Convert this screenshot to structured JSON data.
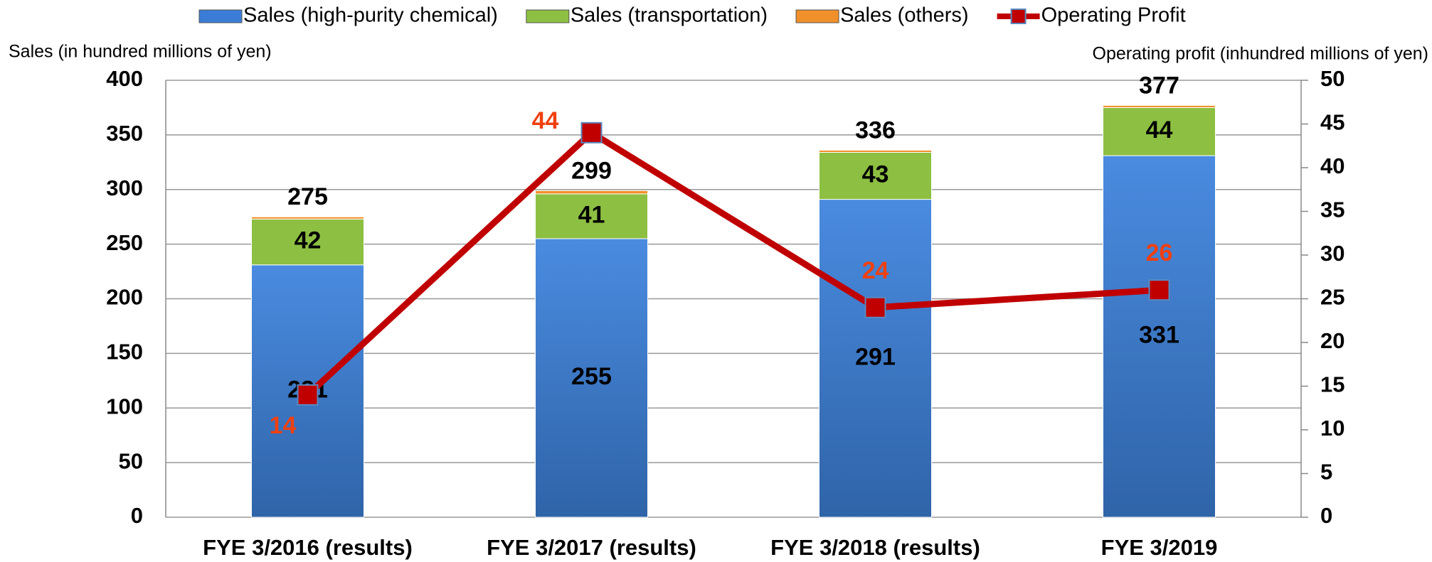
{
  "chart_data": {
    "type": "bar",
    "y_axis_label": "Sales (in hundred millions of yen)",
    "y2_axis_label": "Operating profit (inhundred millions of yen)",
    "categories": [
      "FYE 3/2016 (results)",
      "FYE 3/2017 (results)",
      "FYE 3/2018 (results)",
      "FYE 3/2019"
    ],
    "series": [
      {
        "name": "Sales (high-purity chemical)",
        "color": "#3b7dd6",
        "values": [
          231,
          255,
          291,
          331
        ]
      },
      {
        "name": "Sales (transportation)",
        "color": "#8dbf42",
        "values": [
          42,
          41,
          43,
          44
        ]
      },
      {
        "name": "Sales (others)",
        "color": "#f0902a",
        "values": [
          2,
          3,
          2,
          2
        ]
      },
      {
        "name": "Operating Profit",
        "type": "line",
        "axis": "y2",
        "color": "#c00000",
        "label_color": "#f04010",
        "values": [
          14,
          44,
          24,
          26
        ]
      }
    ],
    "total_labels": [
      275,
      299,
      336,
      377
    ],
    "ylim": [
      0,
      400
    ],
    "yticks": [
      0,
      50,
      100,
      150,
      200,
      250,
      300,
      350,
      400
    ],
    "y2lim": [
      0,
      50
    ],
    "y2ticks": [
      0,
      5,
      10,
      15,
      20,
      25,
      30,
      35,
      40,
      45,
      50
    ],
    "grid": true,
    "legend": "top"
  }
}
